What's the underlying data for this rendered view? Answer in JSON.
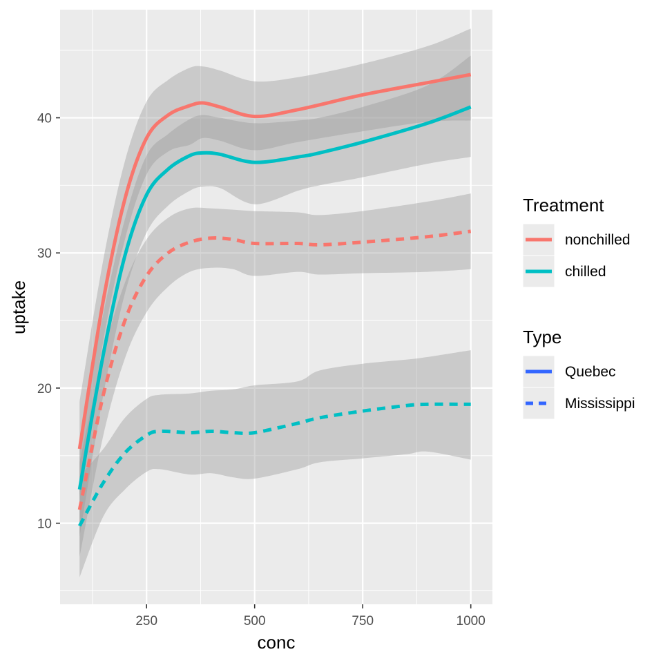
{
  "chart_data": {
    "type": "line",
    "xlabel": "conc",
    "ylabel": "uptake",
    "xlim": [
      50,
      1050
    ],
    "ylim": [
      4,
      48
    ],
    "xticks": [
      250,
      500,
      750,
      1000
    ],
    "yticks": [
      10,
      20,
      30,
      40
    ],
    "grid": true,
    "legend_position": "right",
    "colors": {
      "panel": "#ebebeb",
      "grid_major": "#ffffff",
      "band": "#999999",
      "nonchilled": "#f8766d",
      "chilled": "#00bfc4",
      "legend_type": "#3366ff"
    },
    "legends": [
      {
        "title": "Treatment",
        "entries": [
          {
            "label": "nonchilled",
            "color": "#f8766d",
            "dash": "solid"
          },
          {
            "label": "chilled",
            "color": "#00bfc4",
            "dash": "solid"
          }
        ]
      },
      {
        "title": "Type",
        "entries": [
          {
            "label": "Quebec",
            "color": "#3366ff",
            "dash": "solid"
          },
          {
            "label": "Mississippi",
            "color": "#3366ff",
            "dash": "dashed"
          }
        ]
      }
    ],
    "series": [
      {
        "treatment": "nonchilled",
        "type": "Quebec",
        "x": [
          95,
          150,
          200,
          250,
          300,
          350,
          380,
          420,
          500,
          600,
          750,
          900,
          1000
        ],
        "y": [
          15.5,
          26.5,
          34.0,
          38.5,
          40.2,
          40.9,
          41.1,
          40.8,
          40.1,
          40.6,
          41.7,
          42.6,
          43.2
        ],
        "lower": [
          12.0,
          23.5,
          31.0,
          35.8,
          37.5,
          38.0,
          38.5,
          38.3,
          37.6,
          38.2,
          39.0,
          39.7,
          39.8
        ],
        "upper": [
          19.0,
          29.5,
          36.8,
          41.2,
          42.8,
          43.7,
          43.8,
          43.5,
          42.7,
          43.0,
          44.0,
          45.3,
          46.6
        ]
      },
      {
        "treatment": "chilled",
        "type": "Quebec",
        "x": [
          95,
          150,
          200,
          250,
          300,
          350,
          380,
          420,
          500,
          600,
          650,
          750,
          900,
          1000
        ],
        "y": [
          12.5,
          22.5,
          29.8,
          34.3,
          36.2,
          37.2,
          37.4,
          37.3,
          36.7,
          37.1,
          37.4,
          38.2,
          39.6,
          40.8
        ],
        "lower": [
          9.0,
          19.5,
          27.0,
          31.5,
          33.5,
          34.6,
          34.9,
          34.8,
          33.6,
          34.6,
          35.0,
          35.6,
          36.6,
          37.1
        ],
        "upper": [
          16.0,
          25.5,
          32.5,
          37.2,
          38.8,
          39.9,
          40.2,
          40.0,
          39.6,
          39.8,
          40.0,
          40.8,
          42.4,
          44.6
        ]
      },
      {
        "treatment": "nonchilled",
        "type": "Mississippi",
        "x": [
          95,
          150,
          200,
          250,
          300,
          350,
          400,
          450,
          500,
          600,
          650,
          750,
          900,
          1000
        ],
        "y": [
          11.0,
          19.5,
          25.0,
          28.3,
          30.0,
          30.8,
          31.1,
          31.0,
          30.7,
          30.7,
          30.6,
          30.8,
          31.2,
          31.6
        ],
        "lower": [
          7.5,
          16.5,
          22.2,
          25.6,
          27.5,
          28.6,
          28.9,
          28.8,
          28.3,
          28.6,
          28.4,
          28.5,
          28.6,
          28.8
        ],
        "upper": [
          14.5,
          22.5,
          27.8,
          31.0,
          32.6,
          33.3,
          33.3,
          33.2,
          33.1,
          33.0,
          32.8,
          33.1,
          33.8,
          34.4
        ]
      },
      {
        "treatment": "chilled",
        "type": "Mississippi",
        "x": [
          95,
          150,
          200,
          250,
          280,
          350,
          400,
          450,
          500,
          600,
          650,
          750,
          850,
          900,
          1000
        ],
        "y": [
          9.8,
          13.0,
          15.2,
          16.5,
          16.8,
          16.7,
          16.8,
          16.7,
          16.7,
          17.4,
          17.8,
          18.3,
          18.7,
          18.8,
          18.8
        ],
        "lower": [
          6.0,
          10.5,
          12.5,
          13.8,
          14.0,
          13.6,
          13.7,
          13.4,
          13.3,
          14.0,
          14.5,
          14.8,
          15.1,
          15.3,
          14.7
        ],
        "upper": [
          13.5,
          15.5,
          17.8,
          19.2,
          19.5,
          19.6,
          19.8,
          19.9,
          20.2,
          20.5,
          21.3,
          21.8,
          22.1,
          22.3,
          22.8
        ]
      }
    ]
  }
}
